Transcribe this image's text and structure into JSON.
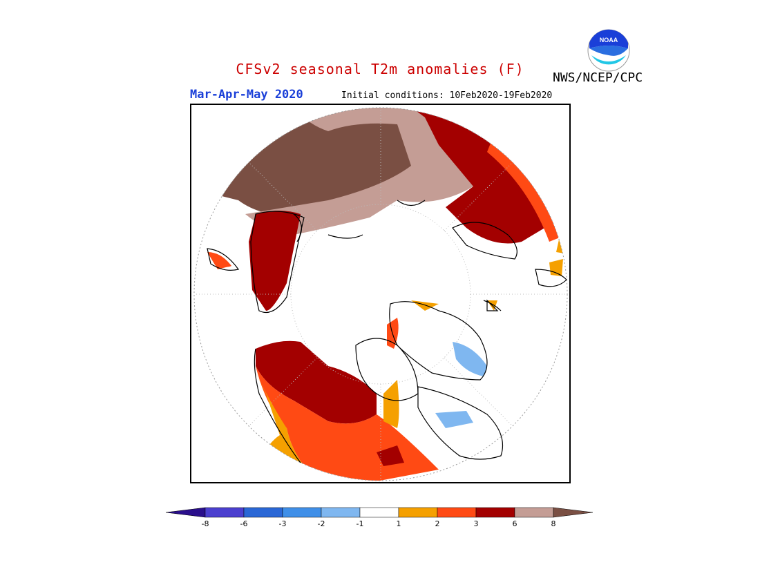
{
  "header": {
    "title": "CFSv2 seasonal T2m anomalies (F)",
    "agency": "NWS/NCEP/CPC",
    "season": "Mar-Apr-May 2020",
    "initial_conditions": "Initial conditions: 10Feb2020-19Feb2020",
    "logo_text": "NOAA"
  },
  "colorbar": {
    "tick_labels": [
      "-8",
      "-6",
      "-3",
      "-2",
      "-1",
      "1",
      "2",
      "3",
      "6",
      "8"
    ],
    "colors": [
      "#2a0f8c",
      "#4b3fcf",
      "#2a67d6",
      "#3f8fe8",
      "#7fb7f0",
      "#ffffff",
      "#f5a000",
      "#ff4a14",
      "#a30000",
      "#c49d95",
      "#7a4f43"
    ]
  },
  "colors": {
    "cold_light": "#7fb7f0",
    "warm_1": "#f5a000",
    "warm_2": "#ff4a14",
    "warm_3": "#a30000",
    "warm_4": "#c49d95",
    "warm_5": "#7a4f43"
  }
}
